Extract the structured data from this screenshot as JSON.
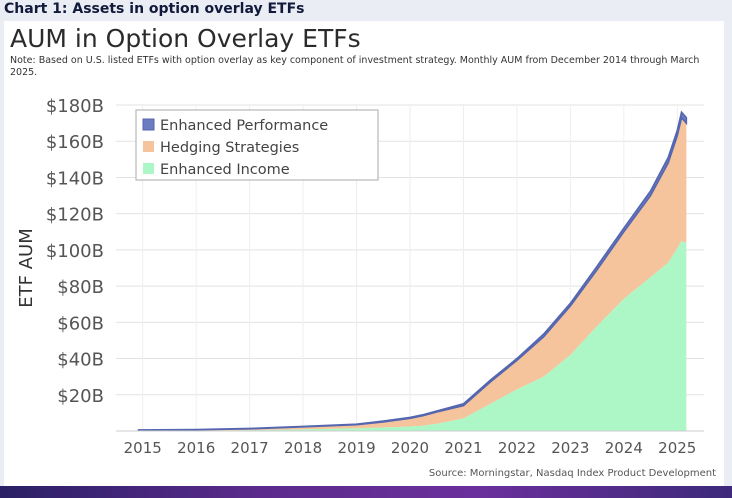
{
  "header": {
    "label": "Chart 1: Assets in option overlay ETFs"
  },
  "footer": {
    "source": "Source: Morningstar, Nasdaq Index Product Development"
  },
  "chart_data": {
    "type": "area",
    "stacked": true,
    "title": "AUM in Option Overlay ETFs",
    "note": "Note: Based on U.S. listed ETFs with option overlay as key component of investment strategy. Monthly AUM from December 2014 through March 2025.",
    "xlabel": "",
    "ylabel": "ETF AUM",
    "xlim": [
      2014.5,
      2025.5
    ],
    "ylim": [
      0,
      180
    ],
    "y_ticks": [
      20,
      40,
      60,
      80,
      100,
      120,
      140,
      160,
      180
    ],
    "y_tick_labels": [
      "$20B",
      "$40B",
      "$60B",
      "$80B",
      "$100B",
      "$120B",
      "$140B",
      "$160B",
      "$180B"
    ],
    "x_ticks": [
      2015,
      2016,
      2017,
      2018,
      2019,
      2020,
      2021,
      2022,
      2023,
      2024,
      2025
    ],
    "x_tick_labels": [
      "2015",
      "2016",
      "2017",
      "2018",
      "2019",
      "2020",
      "2021",
      "2022",
      "2023",
      "2024",
      "2025"
    ],
    "grid": true,
    "legend_position": "top-left",
    "x": [
      2014.92,
      2016.0,
      2017.0,
      2018.0,
      2019.0,
      2019.5,
      2020.0,
      2020.25,
      2020.5,
      2021.0,
      2021.5,
      2022.0,
      2022.5,
      2023.0,
      2023.5,
      2024.0,
      2024.5,
      2024.83,
      2025.0,
      2025.08,
      2025.17
    ],
    "series": [
      {
        "name": "Enhanced Income",
        "color": "#adf7c6",
        "values": [
          0.2,
          0.3,
          0.5,
          1.0,
          1.5,
          2.0,
          2.5,
          3.0,
          4.0,
          7.0,
          15.0,
          23.0,
          30.0,
          42.0,
          58.0,
          73.0,
          85.0,
          93.0,
          101.0,
          105.0,
          104.0
        ]
      },
      {
        "name": "Hedging Strategies",
        "color": "#f5c39c",
        "values": [
          0.3,
          0.4,
          0.7,
          1.3,
          2.0,
          3.0,
          4.5,
          5.5,
          6.5,
          7.0,
          12.0,
          16.0,
          22.0,
          27.0,
          31.0,
          37.0,
          45.0,
          55.0,
          62.0,
          68.0,
          66.0
        ]
      },
      {
        "name": "Enhanced Performance",
        "color": "#6b7cc0",
        "values": [
          0.1,
          0.1,
          0.2,
          0.2,
          0.3,
          0.5,
          0.5,
          0.5,
          0.5,
          1.0,
          1.0,
          1.0,
          1.5,
          1.5,
          2.0,
          2.0,
          2.5,
          3.0,
          3.0,
          3.0,
          3.0
        ]
      }
    ],
    "legend_order": [
      "Enhanced Performance",
      "Hedging Strategies",
      "Enhanced Income"
    ]
  }
}
